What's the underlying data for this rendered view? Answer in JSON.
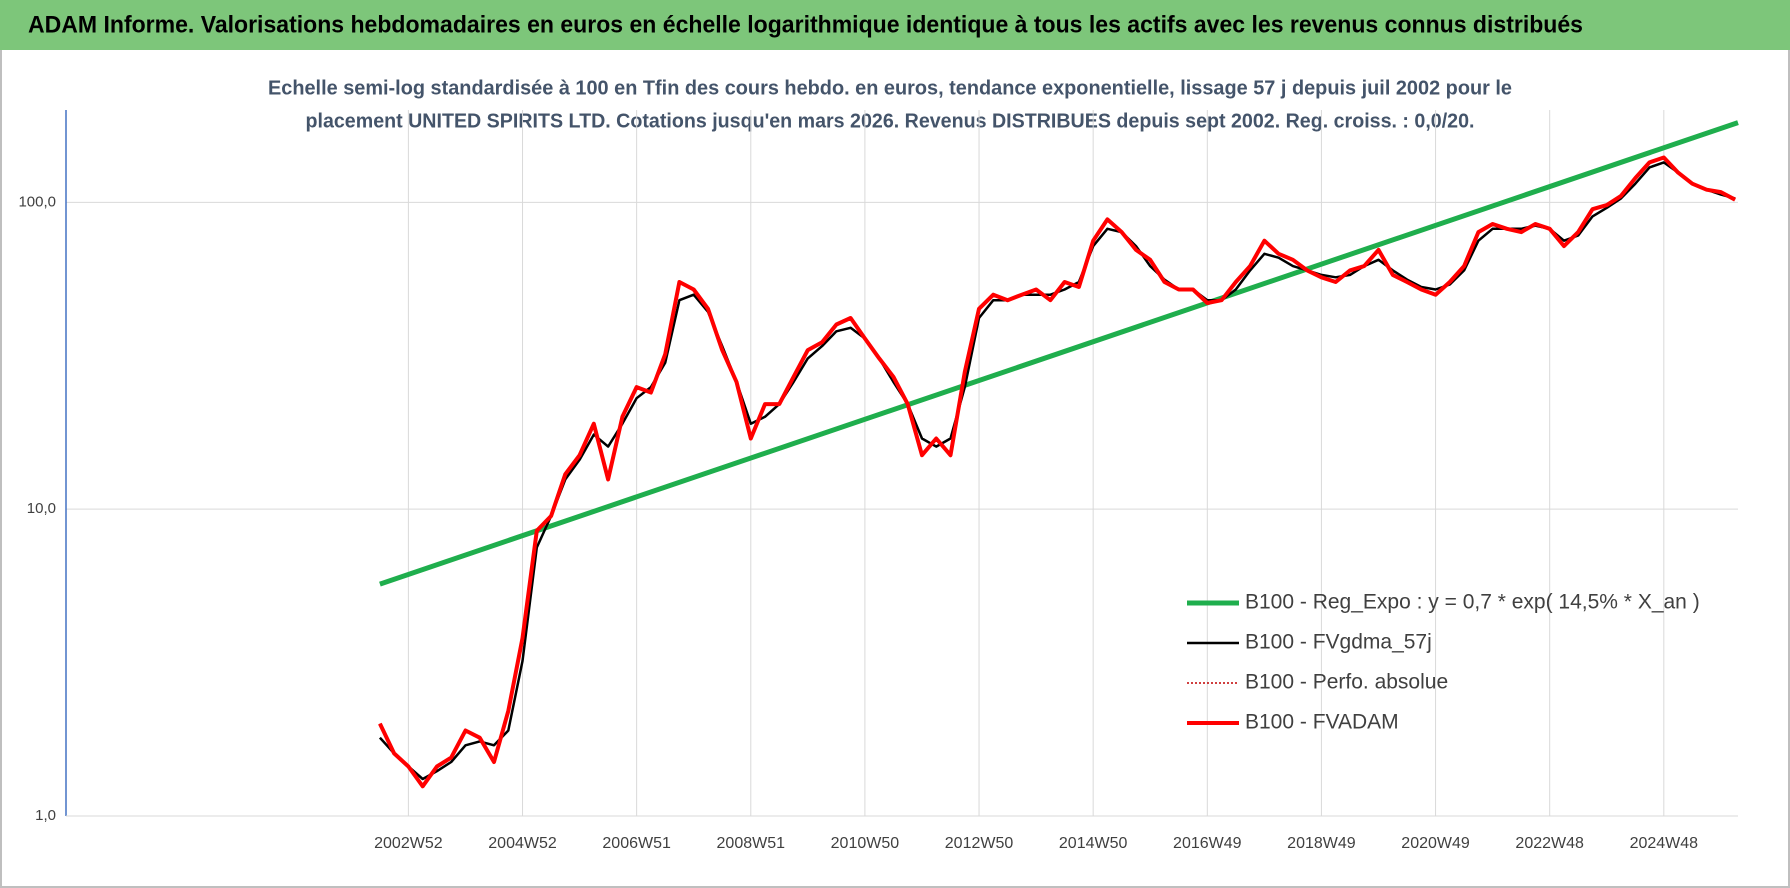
{
  "chart_data": {
    "type": "line",
    "title": "ADAM Informe. Valorisations hebdomadaires en euros en échelle logarithmique identique à tous les actifs avec les revenus connus distribués",
    "subtitle": [
      "Echelle semi-log standardisée à 100 en Tfin des cours hebdo. en euros, tendance exponentielle, lissage 57 j depuis juil 2002 pour le",
      "placement UNITED SPIRITS LTD. Cotations jusqu'en mars 2026. Revenus DISTRIBUES depuis sept 2002. Reg. croiss. : 0,0/20."
    ],
    "log_scale_y": true,
    "grid": true,
    "legend": "lower right",
    "xlim": [
      1997.0,
      2026.3
    ],
    "xticks": [
      {
        "value": 2003.0,
        "label": "2002W52"
      },
      {
        "value": 2005.0,
        "label": "2004W52"
      },
      {
        "value": 2007.0,
        "label": "2006W51"
      },
      {
        "value": 2009.0,
        "label": "2008W51"
      },
      {
        "value": 2011.0,
        "label": "2010W50"
      },
      {
        "value": 2013.0,
        "label": "2012W50"
      },
      {
        "value": 2015.0,
        "label": "2014W50"
      },
      {
        "value": 2017.0,
        "label": "2016W49"
      },
      {
        "value": 2019.0,
        "label": "2018W49"
      },
      {
        "value": 2021.0,
        "label": "2020W49"
      },
      {
        "value": 2023.0,
        "label": "2022W48"
      },
      {
        "value": 2025.0,
        "label": "2024W48"
      }
    ],
    "ylim": [
      1,
      200
    ],
    "yticks": [
      {
        "value": 1,
        "label": "1,0"
      },
      {
        "value": 10,
        "label": "10,0"
      },
      {
        "value": 100,
        "label": "100,0"
      }
    ],
    "x": [
      2002.5,
      2002.75,
      2003.0,
      2003.25,
      2003.5,
      2003.75,
      2004.0,
      2004.25,
      2004.5,
      2004.75,
      2005.0,
      2005.25,
      2005.5,
      2005.75,
      2006.0,
      2006.25,
      2006.5,
      2006.75,
      2007.0,
      2007.25,
      2007.5,
      2007.75,
      2008.0,
      2008.25,
      2008.5,
      2008.75,
      2009.0,
      2009.25,
      2009.5,
      2009.75,
      2010.0,
      2010.25,
      2010.5,
      2010.75,
      2011.0,
      2011.25,
      2011.5,
      2011.75,
      2012.0,
      2012.25,
      2012.5,
      2012.75,
      2013.0,
      2013.25,
      2013.5,
      2013.75,
      2014.0,
      2014.25,
      2014.5,
      2014.75,
      2015.0,
      2015.25,
      2015.5,
      2015.75,
      2016.0,
      2016.25,
      2016.5,
      2016.75,
      2017.0,
      2017.25,
      2017.5,
      2017.75,
      2018.0,
      2018.25,
      2018.5,
      2018.75,
      2019.0,
      2019.25,
      2019.5,
      2019.75,
      2020.0,
      2020.25,
      2020.5,
      2020.75,
      2021.0,
      2021.25,
      2021.5,
      2021.75,
      2022.0,
      2022.25,
      2022.5,
      2022.75,
      2023.0,
      2023.25,
      2023.5,
      2023.75,
      2024.0,
      2024.25,
      2024.5,
      2024.75,
      2025.0,
      2025.25,
      2025.5,
      2025.75,
      2026.0,
      2026.25
    ],
    "series": [
      {
        "name": "B100 - Reg_Expo : y = 0,7 * exp( 14,5% *  X_an )",
        "color": "#1fae4d",
        "line_width": 5,
        "style": "solid",
        "x": [
          2002.5,
          2026.3
        ],
        "values": [
          5.7,
          182
        ]
      },
      {
        "name": "B100 - FVgdma_57j",
        "color": "#000000",
        "line_width": 2.5,
        "style": "solid",
        "values": [
          1.8,
          1.6,
          1.45,
          1.32,
          1.4,
          1.5,
          1.7,
          1.75,
          1.7,
          1.9,
          3.2,
          7.5,
          9.5,
          12.5,
          14.5,
          17.5,
          16,
          19,
          23,
          25,
          30,
          48,
          50,
          44,
          34,
          26,
          19,
          20,
          22,
          26,
          31,
          34,
          38,
          39,
          36,
          31,
          26,
          22,
          17,
          16,
          17,
          25,
          42,
          48,
          48,
          50,
          50,
          50,
          52,
          55,
          72,
          82,
          80,
          72,
          62,
          56,
          52,
          52,
          48,
          48,
          52,
          60,
          68,
          66,
          62,
          60,
          58,
          57,
          58,
          62,
          65,
          60,
          56,
          53,
          52,
          54,
          60,
          75,
          82,
          82,
          82,
          84,
          82,
          75,
          78,
          90,
          96,
          103,
          115,
          130,
          135,
          125,
          115,
          110,
          106,
          103
        ]
      },
      {
        "name": "B100 - Perfo. absolue",
        "color": "#c00000",
        "line_width": 1.5,
        "style": "dotted",
        "values": [
          2.0,
          1.6,
          1.45,
          1.25,
          1.45,
          1.55,
          1.9,
          1.8,
          1.5,
          2.2,
          3.8,
          8.5,
          9.5,
          13,
          15,
          19,
          12.5,
          20,
          25,
          24,
          32,
          55,
          52,
          45,
          33,
          26,
          17,
          22,
          22,
          27,
          33,
          35,
          40,
          42,
          36,
          31,
          27,
          22,
          15,
          17,
          15,
          28,
          45,
          50,
          48,
          50,
          52,
          48,
          55,
          53,
          75,
          88,
          80,
          70,
          65,
          55,
          52,
          52,
          47,
          48,
          55,
          62,
          75,
          68,
          65,
          60,
          57,
          55,
          60,
          62,
          70,
          58,
          55,
          52,
          50,
          55,
          62,
          80,
          85,
          82,
          80,
          85,
          82,
          72,
          80,
          95,
          98,
          105,
          120,
          135,
          140,
          125,
          115,
          110,
          108,
          102
        ]
      },
      {
        "name": "B100 - FVADAM",
        "color": "#ff0000",
        "line_width": 4,
        "style": "solid",
        "values": [
          2.0,
          1.6,
          1.45,
          1.25,
          1.45,
          1.55,
          1.9,
          1.8,
          1.5,
          2.2,
          3.8,
          8.5,
          9.5,
          13,
          15,
          19,
          12.5,
          20,
          25,
          24,
          32,
          55,
          52,
          45,
          33,
          26,
          17,
          22,
          22,
          27,
          33,
          35,
          40,
          42,
          36,
          31,
          27,
          22,
          15,
          17,
          15,
          28,
          45,
          50,
          48,
          50,
          52,
          48,
          55,
          53,
          75,
          88,
          80,
          70,
          65,
          55,
          52,
          52,
          47,
          48,
          55,
          62,
          75,
          68,
          65,
          60,
          57,
          55,
          60,
          62,
          70,
          58,
          55,
          52,
          50,
          55,
          62,
          80,
          85,
          82,
          80,
          85,
          82,
          72,
          80,
          95,
          98,
          105,
          120,
          135,
          140,
          125,
          115,
          110,
          108,
          102
        ]
      }
    ]
  }
}
